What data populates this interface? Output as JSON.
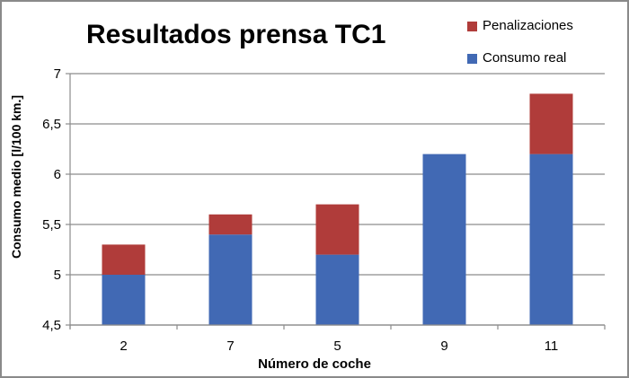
{
  "chart_data": {
    "type": "bar",
    "stacked": true,
    "title": "Resultados prensa TC1",
    "xlabel": "Número de coche",
    "ylabel": "Consumo medio [l/100 km.]",
    "ylim": [
      4.5,
      7
    ],
    "yticks": [
      "4,5",
      "5",
      "5,5",
      "6",
      "6,5",
      "7"
    ],
    "ytick_values": [
      4.5,
      5,
      5.5,
      6,
      6.5,
      7
    ],
    "grid": true,
    "legend_position": "top-right",
    "categories": [
      "2",
      "7",
      "5",
      "9",
      "11"
    ],
    "series": [
      {
        "name": "Consumo real",
        "color": "#4169b4",
        "values": [
          5.0,
          5.4,
          5.2,
          6.2,
          6.2
        ]
      },
      {
        "name": "Penalizaciones",
        "color": "#b03c3a",
        "values": [
          0.3,
          0.2,
          0.5,
          0.0,
          0.6
        ]
      }
    ],
    "totals": [
      5.3,
      5.6,
      5.7,
      6.2,
      6.8
    ]
  },
  "legend": {
    "items": [
      {
        "label": "Penalizaciones",
        "color": "#b03c3a"
      },
      {
        "label": "Consumo real",
        "color": "#4169b4"
      }
    ]
  }
}
